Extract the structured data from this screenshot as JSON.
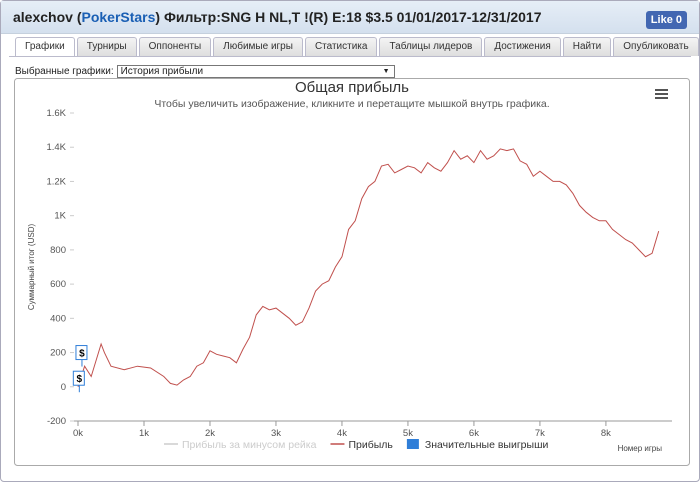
{
  "header": {
    "title_prefix": "alexchov (",
    "site": "PokerStars",
    "title_suffix": ") Фильтр:SNG H NL,T !(R) E:18 $3.5 01/01/2017-12/31/2017",
    "like_label": "Like",
    "like_count": "0"
  },
  "tabs": [
    "Графики",
    "Турниры",
    "Оппоненты",
    "Любимые игры",
    "Статистика",
    "Таблицы лидеров",
    "Достижения",
    "Найти",
    "Опубликовать"
  ],
  "selector": {
    "label": "Выбранные графики:",
    "value": "История прибыли"
  },
  "chart_data": {
    "type": "line",
    "title": "Общая прибыль",
    "subtitle": "Чтобы увеличить изображение, кликните и перетащите мышкой внутрь графика.",
    "x_label": "Номер игры",
    "y_label": "Суммарный итог (USD)",
    "xlim": [
      0,
      8850
    ],
    "ylim": [
      -200,
      1600
    ],
    "xticks": [
      {
        "value": 0,
        "label": "0k"
      },
      {
        "value": 1000,
        "label": "1k"
      },
      {
        "value": 2000,
        "label": "2k"
      },
      {
        "value": 3000,
        "label": "3k"
      },
      {
        "value": 4000,
        "label": "4k"
      },
      {
        "value": 5000,
        "label": "5k"
      },
      {
        "value": 6000,
        "label": "6k"
      },
      {
        "value": 7000,
        "label": "7k"
      },
      {
        "value": 8000,
        "label": "8k"
      }
    ],
    "yticks": [
      -200,
      0,
      200,
      400,
      600,
      800,
      {
        "value": 1000,
        "label": "1K"
      },
      {
        "value": 1200,
        "label": "1.2K"
      },
      {
        "value": 1400,
        "label": "1.4K"
      },
      {
        "value": 1600,
        "label": "1.6K"
      }
    ],
    "x": [
      0,
      100,
      200,
      350,
      400,
      500,
      700,
      900,
      1100,
      1300,
      1400,
      1500,
      1600,
      1700,
      1800,
      1900,
      2000,
      2100,
      2200,
      2300,
      2400,
      2500,
      2600,
      2700,
      2800,
      2900,
      3000,
      3100,
      3200,
      3300,
      3400,
      3500,
      3600,
      3700,
      3800,
      3900,
      4000,
      4100,
      4200,
      4300,
      4400,
      4500,
      4600,
      4700,
      4800,
      4900,
      5000,
      5100,
      5200,
      5300,
      5400,
      5500,
      5600,
      5700,
      5800,
      5900,
      6000,
      6100,
      6200,
      6300,
      6400,
      6500,
      6600,
      6700,
      6800,
      6900,
      7000,
      7100,
      7200,
      7300,
      7400,
      7500,
      7600,
      7700,
      7800,
      7900,
      8000,
      8100,
      8200,
      8300,
      8400,
      8500,
      8600,
      8700,
      8800
    ],
    "series": [
      {
        "name": "Прибыль",
        "color": "#c0504d",
        "values": [
          0,
          120,
          60,
          250,
          200,
          120,
          100,
          120,
          110,
          60,
          20,
          10,
          40,
          60,
          120,
          140,
          210,
          190,
          180,
          170,
          140,
          220,
          290,
          420,
          470,
          450,
          460,
          430,
          400,
          360,
          380,
          460,
          560,
          600,
          620,
          700,
          760,
          920,
          970,
          1100,
          1170,
          1200,
          1290,
          1300,
          1250,
          1270,
          1290,
          1280,
          1250,
          1310,
          1280,
          1260,
          1310,
          1380,
          1330,
          1350,
          1310,
          1380,
          1330,
          1350,
          1390,
          1380,
          1390,
          1320,
          1300,
          1230,
          1260,
          1230,
          1200,
          1200,
          1180,
          1130,
          1060,
          1020,
          990,
          970,
          970,
          920,
          890,
          860,
          840,
          800,
          760,
          780,
          910
        ]
      }
    ],
    "legend": [
      {
        "name": "Прибыль за минусом рейка",
        "color": "#cccccc"
      },
      {
        "name": "Прибыль",
        "color": "#c0504d"
      },
      {
        "name": "Значительные выигрыши",
        "color": "#2f7ed8"
      }
    ],
    "markers": [
      {
        "x": 60,
        "y": 200,
        "label": "$"
      },
      {
        "x": 20,
        "y": 50,
        "label": "$"
      }
    ]
  }
}
